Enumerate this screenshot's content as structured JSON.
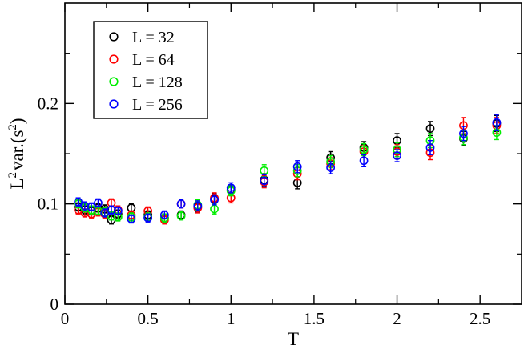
{
  "chart_data": {
    "type": "scatter",
    "title": "",
    "xlabel": "T",
    "ylabel": {
      "base": "L",
      "sup1": "2",
      "mid": "var.(s",
      "sup2": "2",
      "end": ")"
    },
    "xlim": [
      0,
      2.75
    ],
    "ylim": [
      0,
      0.3
    ],
    "xticks": [
      0,
      0.5,
      1,
      1.5,
      2,
      2.5
    ],
    "xtick_labels": [
      "0",
      "0.5",
      "1",
      "1.5",
      "2",
      "2.5"
    ],
    "yticks": [
      0,
      0.1,
      0.2
    ],
    "ytick_labels": [
      "0",
      "0.1",
      "0.2"
    ],
    "grid": false,
    "legend_position": "top-left",
    "series": [
      {
        "name": "L = 32",
        "color": "#000000",
        "x": [
          0.08,
          0.12,
          0.16,
          0.2,
          0.24,
          0.28,
          0.32,
          0.4,
          0.5,
          0.6,
          0.7,
          0.8,
          0.9,
          1.0,
          1.2,
          1.4,
          1.6,
          1.8,
          2.0,
          2.2,
          2.4,
          2.6
        ],
        "y": [
          0.097,
          0.094,
          0.093,
          0.096,
          0.095,
          0.084,
          0.09,
          0.096,
          0.089,
          0.086,
          0.089,
          0.097,
          0.105,
          0.114,
          0.124,
          0.121,
          0.146,
          0.156,
          0.163,
          0.175,
          0.165,
          0.18
        ],
        "err": [
          0.004,
          0.004,
          0.004,
          0.004,
          0.004,
          0.004,
          0.004,
          0.004,
          0.004,
          0.004,
          0.004,
          0.005,
          0.005,
          0.005,
          0.006,
          0.006,
          0.006,
          0.006,
          0.007,
          0.007,
          0.007,
          0.008
        ]
      },
      {
        "name": "L = 64",
        "color": "#ff0000",
        "x": [
          0.08,
          0.12,
          0.16,
          0.2,
          0.24,
          0.28,
          0.32,
          0.4,
          0.5,
          0.6,
          0.7,
          0.8,
          0.9,
          1.0,
          1.2,
          1.4,
          1.6,
          1.8,
          2.0,
          2.2,
          2.4,
          2.6
        ],
        "y": [
          0.094,
          0.091,
          0.09,
          0.092,
          0.09,
          0.101,
          0.094,
          0.089,
          0.093,
          0.084,
          0.1,
          0.096,
          0.106,
          0.106,
          0.122,
          0.13,
          0.14,
          0.152,
          0.152,
          0.151,
          0.178,
          0.178
        ],
        "err": [
          0.004,
          0.004,
          0.004,
          0.004,
          0.004,
          0.004,
          0.004,
          0.004,
          0.004,
          0.004,
          0.004,
          0.005,
          0.005,
          0.005,
          0.006,
          0.006,
          0.006,
          0.006,
          0.007,
          0.007,
          0.008,
          0.008
        ]
      },
      {
        "name": "L = 128",
        "color": "#00ee00",
        "x": [
          0.08,
          0.12,
          0.16,
          0.2,
          0.24,
          0.28,
          0.32,
          0.4,
          0.5,
          0.6,
          0.7,
          0.8,
          0.9,
          1.0,
          1.2,
          1.4,
          1.6,
          1.8,
          2.0,
          2.2,
          2.4,
          2.6
        ],
        "y": [
          0.1,
          0.096,
          0.094,
          0.093,
          0.092,
          0.088,
          0.087,
          0.087,
          0.087,
          0.086,
          0.088,
          0.099,
          0.095,
          0.113,
          0.133,
          0.133,
          0.142,
          0.154,
          0.154,
          0.163,
          0.166,
          0.171
        ],
        "err": [
          0.004,
          0.004,
          0.004,
          0.004,
          0.004,
          0.004,
          0.004,
          0.004,
          0.004,
          0.004,
          0.004,
          0.005,
          0.005,
          0.005,
          0.006,
          0.006,
          0.006,
          0.006,
          0.007,
          0.007,
          0.007,
          0.007
        ]
      },
      {
        "name": "L = 256",
        "color": "#0000ff",
        "x": [
          0.08,
          0.12,
          0.16,
          0.2,
          0.24,
          0.28,
          0.32,
          0.4,
          0.5,
          0.6,
          0.7,
          0.8,
          0.9,
          1.0,
          1.2,
          1.4,
          1.6,
          1.8,
          2.0,
          2.2,
          2.4,
          2.6
        ],
        "y": [
          0.102,
          0.098,
          0.097,
          0.101,
          0.091,
          0.094,
          0.093,
          0.085,
          0.086,
          0.089,
          0.1,
          0.098,
          0.104,
          0.116,
          0.123,
          0.137,
          0.136,
          0.143,
          0.148,
          0.156,
          0.17,
          0.181
        ],
        "err": [
          0.004,
          0.004,
          0.004,
          0.004,
          0.004,
          0.004,
          0.004,
          0.004,
          0.004,
          0.004,
          0.004,
          0.005,
          0.005,
          0.005,
          0.006,
          0.006,
          0.006,
          0.006,
          0.006,
          0.007,
          0.007,
          0.008
        ]
      }
    ]
  }
}
